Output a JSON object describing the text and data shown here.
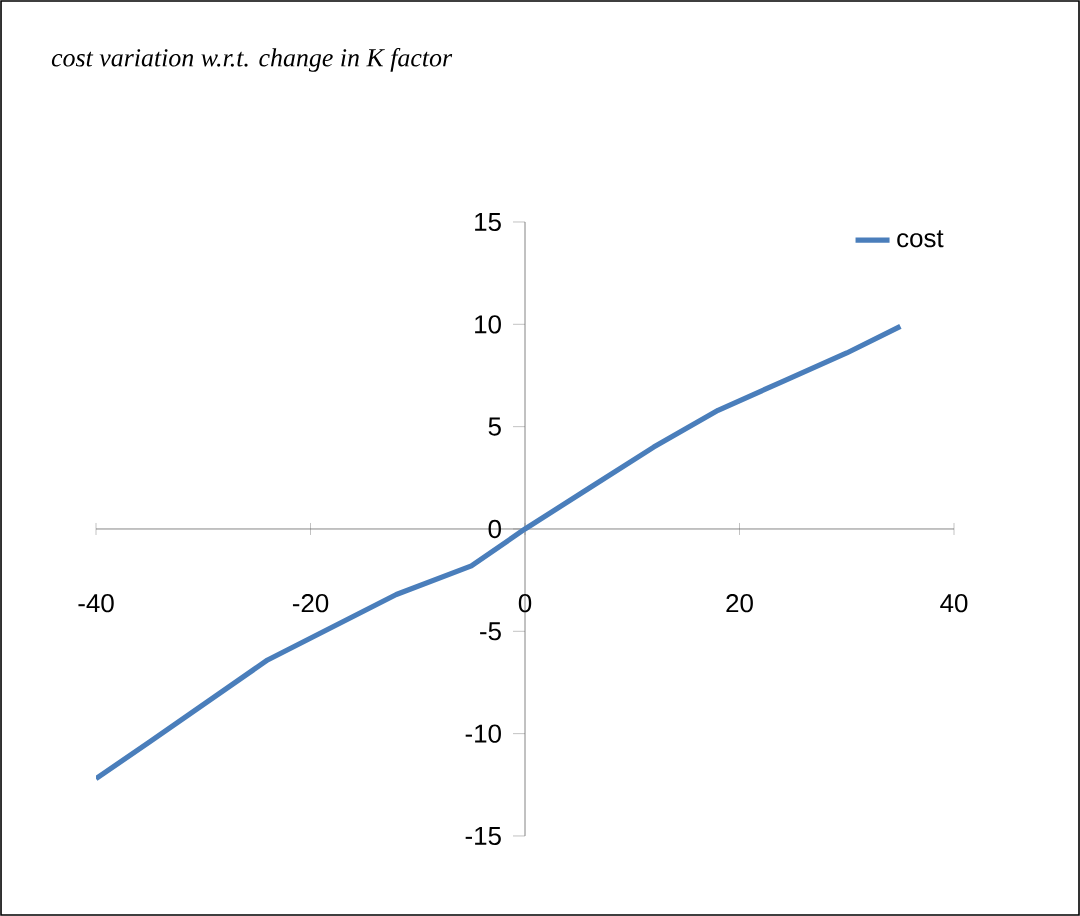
{
  "chart_data": {
    "type": "line",
    "title": "cost variation w.r.t. change in K factor",
    "x": [
      -40,
      -35,
      -24,
      -12,
      -5,
      0,
      6,
      12,
      18,
      24,
      30,
      35
    ],
    "series": [
      {
        "name": "cost",
        "color": "#4a7ebb",
        "values": [
          -12.2,
          -10.4,
          -6.4,
          -3.2,
          -1.8,
          0,
          2,
          4,
          5.8,
          7.2,
          8.6,
          9.9
        ]
      }
    ],
    "xlim": [
      -40,
      40
    ],
    "ylim": [
      -15,
      15
    ],
    "xticks": [
      -40,
      -20,
      0,
      20,
      40
    ],
    "yticks": [
      -15,
      -10,
      -5,
      0,
      5,
      10,
      15
    ],
    "legend": "top right",
    "marker": "none",
    "line_style": "solid",
    "grid": false
  }
}
